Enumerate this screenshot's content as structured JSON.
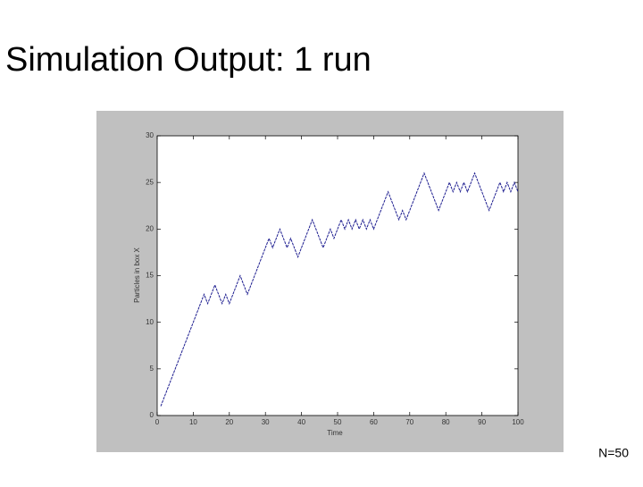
{
  "chart_data": {
    "type": "line",
    "title": "Simulation Output: 1 run",
    "xlabel": "Time",
    "ylabel": "Particles in box X",
    "annotation": "N=50",
    "x": [
      1,
      2,
      3,
      4,
      5,
      6,
      7,
      8,
      9,
      10,
      11,
      12,
      13,
      14,
      15,
      16,
      17,
      18,
      19,
      20,
      21,
      22,
      23,
      24,
      25,
      26,
      27,
      28,
      29,
      30,
      31,
      32,
      33,
      34,
      35,
      36,
      37,
      38,
      39,
      40,
      41,
      42,
      43,
      44,
      45,
      46,
      47,
      48,
      49,
      50,
      51,
      52,
      53,
      54,
      55,
      56,
      57,
      58,
      59,
      60,
      61,
      62,
      63,
      64,
      65,
      66,
      67,
      68,
      69,
      70,
      71,
      72,
      73,
      74,
      75,
      76,
      77,
      78,
      79,
      80,
      81,
      82,
      83,
      84,
      85,
      86,
      87,
      88,
      89,
      90,
      91,
      92,
      93,
      94,
      95,
      96,
      97,
      98,
      99,
      100
    ],
    "values": [
      1,
      2,
      3,
      4,
      5,
      6,
      7,
      8,
      9,
      10,
      11,
      12,
      13,
      12,
      13,
      14,
      13,
      12,
      13,
      12,
      13,
      14,
      15,
      14,
      13,
      14,
      15,
      16,
      17,
      18,
      19,
      18,
      19,
      20,
      19,
      18,
      19,
      18,
      17,
      18,
      19,
      20,
      21,
      20,
      19,
      18,
      19,
      20,
      19,
      20,
      21,
      20,
      21,
      20,
      21,
      20,
      21,
      20,
      21,
      20,
      21,
      22,
      23,
      24,
      23,
      22,
      21,
      22,
      21,
      22,
      23,
      24,
      25,
      26,
      25,
      24,
      23,
      22,
      23,
      24,
      25,
      24,
      25,
      24,
      25,
      24,
      25,
      26,
      25,
      24,
      23,
      22,
      23,
      24,
      25,
      24,
      25,
      24,
      25,
      24
    ],
    "color": "#1c1c8f",
    "xlim": [
      0,
      100
    ],
    "xticks": [
      0,
      10,
      20,
      30,
      40,
      50,
      60,
      70,
      80,
      90,
      100
    ],
    "ylim": [
      0,
      30
    ],
    "yticks": [
      0,
      5,
      10,
      15,
      20,
      25,
      30
    ]
  }
}
